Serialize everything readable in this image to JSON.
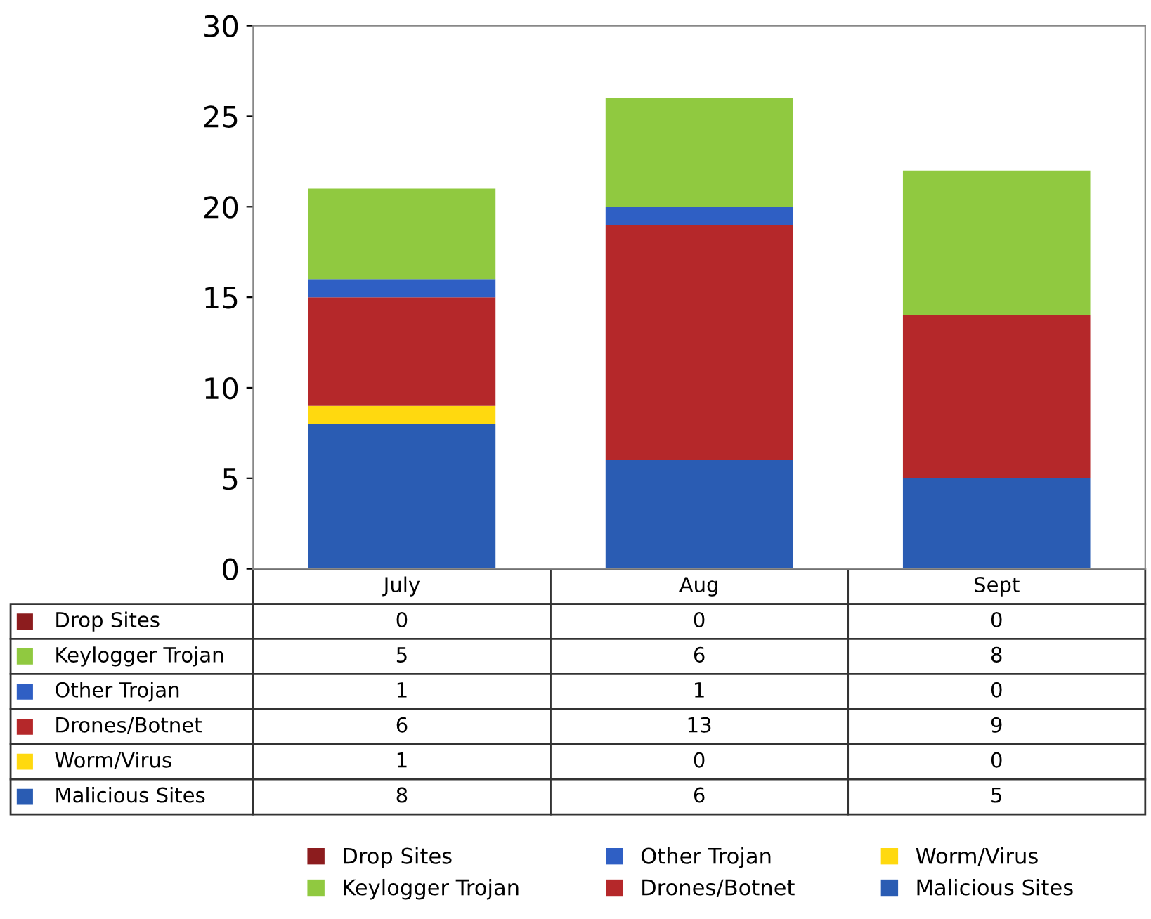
{
  "chart_data": {
    "type": "bar",
    "stacked": true,
    "categories": [
      "July",
      "Aug",
      "Sept"
    ],
    "series": [
      {
        "name": "Malicious Sites",
        "color": "#2a5cb3",
        "values": [
          8,
          6,
          5
        ]
      },
      {
        "name": "Worm/Virus",
        "color": "#ffd90f",
        "values": [
          1,
          0,
          0
        ]
      },
      {
        "name": "Drones/Botnet",
        "color": "#b5282a",
        "values": [
          6,
          13,
          9
        ]
      },
      {
        "name": "Other Trojan",
        "color": "#2f5fc4",
        "values": [
          1,
          1,
          0
        ]
      },
      {
        "name": "Keylogger Trojan",
        "color": "#90c940",
        "values": [
          5,
          6,
          8
        ]
      },
      {
        "name": "Drop Sites",
        "color": "#8c1c1e",
        "values": [
          0,
          0,
          0
        ]
      }
    ],
    "ylim": [
      0,
      30
    ],
    "yticks": [
      0,
      5,
      10,
      15,
      20,
      25,
      30
    ],
    "grid": false,
    "legend": "bottom",
    "data_labels": true
  }
}
